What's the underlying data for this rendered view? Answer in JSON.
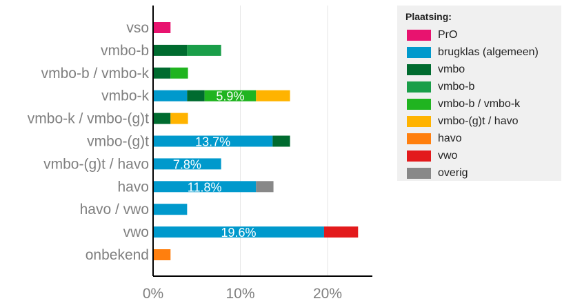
{
  "chart_data": {
    "type": "bar",
    "orientation": "horizontal",
    "stacked": true,
    "title": "",
    "xlabel": "",
    "ylabel": "",
    "xlim": [
      0,
      25
    ],
    "ticks": [
      0,
      10,
      20
    ],
    "tick_labels": [
      "0%",
      "10%",
      "20%"
    ],
    "grid": true,
    "legend_position": "right",
    "legend_title": "Plaatsing:",
    "categories": [
      "vso",
      "vmbo-b",
      "vmbo-b / vmbo-k",
      "vmbo-k",
      "vmbo-k / vmbo-(g)t",
      "vmbo-(g)t",
      "vmbo-(g)t / havo",
      "havo",
      "havo / vwo",
      "vwo",
      "onbekend"
    ],
    "series": [
      {
        "name": "PrO",
        "color": "#e8136f",
        "values": [
          2.0,
          0,
          0,
          0,
          0,
          0,
          0,
          0,
          0,
          0,
          0
        ]
      },
      {
        "name": "brugklas (algemeen)",
        "color": "#0099cc",
        "values": [
          0,
          0,
          0,
          3.9,
          0,
          13.7,
          7.8,
          11.8,
          3.9,
          19.6,
          0
        ]
      },
      {
        "name": "vmbo",
        "color": "#006b2f",
        "values": [
          0,
          3.9,
          2.0,
          2.0,
          2.0,
          2.0,
          0,
          0,
          0,
          0,
          0
        ]
      },
      {
        "name": "vmbo-b",
        "color": "#1a9e49",
        "values": [
          0,
          3.9,
          0,
          0,
          0,
          0,
          0,
          0,
          0,
          0,
          0
        ]
      },
      {
        "name": "vmbo-b / vmbo-k",
        "color": "#20b420",
        "values": [
          0,
          0,
          2.0,
          5.9,
          0,
          0,
          0,
          0,
          0,
          0,
          0
        ]
      },
      {
        "name": "vmbo-(g)t / havo",
        "color": "#ffb300",
        "values": [
          0,
          0,
          0,
          3.9,
          2.0,
          0,
          0,
          0,
          0,
          0,
          0
        ]
      },
      {
        "name": "havo",
        "color": "#ff7f0e",
        "values": [
          0,
          0,
          0,
          0,
          0,
          0,
          0,
          0,
          0,
          0,
          2.0
        ]
      },
      {
        "name": "vwo",
        "color": "#e31a1c",
        "values": [
          0,
          0,
          0,
          0,
          0,
          0,
          0,
          0,
          0,
          3.9,
          0
        ]
      },
      {
        "name": "overig",
        "color": "#888888",
        "values": [
          0,
          0,
          0,
          0,
          0,
          0,
          0,
          2.0,
          0,
          0,
          0
        ]
      }
    ],
    "data_labels": [
      {
        "category": "vmbo-k",
        "series": "vmbo-b / vmbo-k",
        "text": "5.9%"
      },
      {
        "category": "vmbo-(g)t",
        "series": "brugklas (algemeen)",
        "text": "13.7%"
      },
      {
        "category": "vmbo-(g)t / havo",
        "series": "brugklas (algemeen)",
        "text": "7.8%"
      },
      {
        "category": "havo",
        "series": "brugklas (algemeen)",
        "text": "11.8%"
      },
      {
        "category": "vwo",
        "series": "brugklas (algemeen)",
        "text": "19.6%"
      }
    ]
  }
}
